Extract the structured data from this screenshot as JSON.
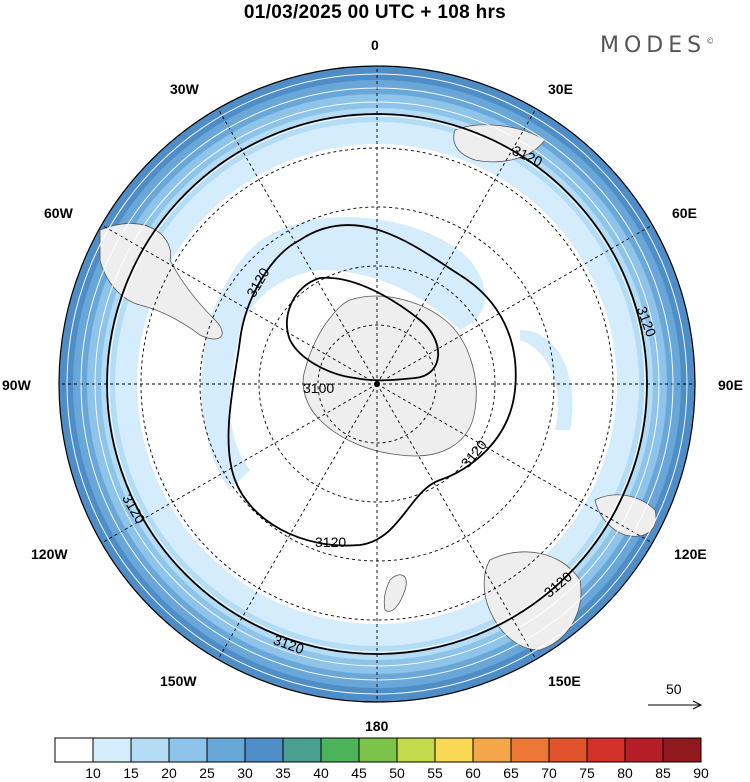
{
  "header": {
    "title": "01/03/2025  00 UTC  + 108 hrs",
    "brand": "MODES",
    "brand_mark": "©"
  },
  "map": {
    "projection": "south-polar-stereographic",
    "longitude_labels": [
      {
        "id": "0",
        "text": "0"
      },
      {
        "id": "30e",
        "text": "30E"
      },
      {
        "id": "60e",
        "text": "60E"
      },
      {
        "id": "90e",
        "text": "90E"
      },
      {
        "id": "120e",
        "text": "120E"
      },
      {
        "id": "150e",
        "text": "150E"
      },
      {
        "id": "180",
        "text": "180"
      },
      {
        "id": "150w",
        "text": "150W"
      },
      {
        "id": "120w",
        "text": "120W"
      },
      {
        "id": "90w",
        "text": "90W"
      },
      {
        "id": "60w",
        "text": "60W"
      },
      {
        "id": "30w",
        "text": "30W"
      }
    ],
    "contour_labels": [
      {
        "id": "c3100",
        "text": "3100"
      },
      {
        "id": "c3120a",
        "text": "3120"
      },
      {
        "id": "c3120b",
        "text": "3120"
      },
      {
        "id": "c3120c",
        "text": "3120"
      },
      {
        "id": "c3120d",
        "text": "3120"
      },
      {
        "id": "c3120e",
        "text": "3120"
      },
      {
        "id": "c3120f",
        "text": "3120"
      },
      {
        "id": "c3120g",
        "text": "3120"
      },
      {
        "id": "c3120h",
        "text": "3120"
      }
    ],
    "reference_vector": "50",
    "colors": {
      "land": "#eeeeee",
      "ocean": "#ffffff",
      "contour": "#000000"
    }
  },
  "colorbar": {
    "ticks": [
      "10",
      "15",
      "20",
      "25",
      "30",
      "35",
      "40",
      "45",
      "50",
      "55",
      "60",
      "65",
      "70",
      "75",
      "80",
      "85",
      "90"
    ],
    "colors": [
      "#ffffff",
      "#d4ecfc",
      "#b4dcf5",
      "#8ec3ea",
      "#6aa7d9",
      "#4f8dc6",
      "#49a08e",
      "#4cb35a",
      "#7cc449",
      "#c4da4d",
      "#f8d855",
      "#f3a74a",
      "#ec7736",
      "#e0532c",
      "#d13128",
      "#b51e27",
      "#901a1e"
    ]
  }
}
